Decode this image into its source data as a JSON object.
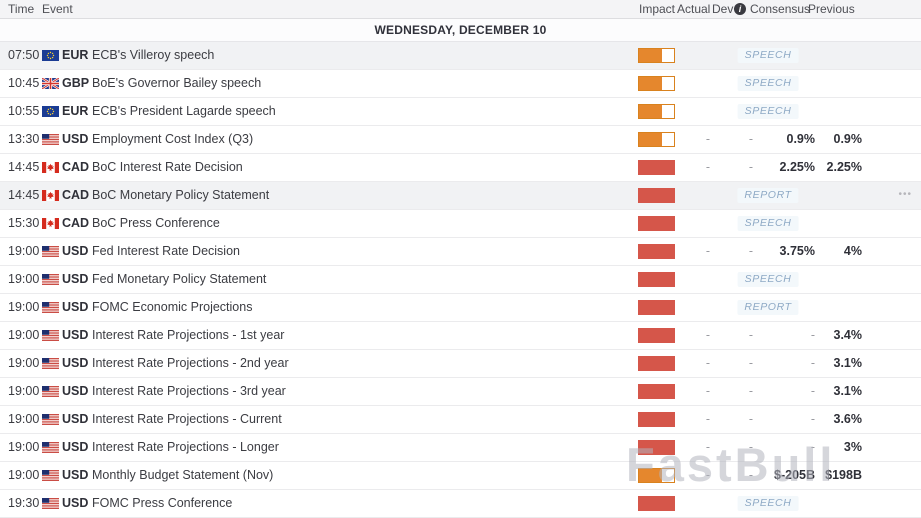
{
  "header": {
    "time": "Time",
    "event": "Event",
    "impact": "Impact",
    "actual": "Actual",
    "dev": "Dev",
    "consensus": "Consensus",
    "previous": "Previous"
  },
  "icons": {
    "info": "i",
    "more": "•••"
  },
  "date_header": "WEDNESDAY, DECEMBER 10",
  "watermark": "FastBull",
  "colors": {
    "impact_medium": "#E5872D",
    "impact_medium_border": "#D9821E",
    "impact_high": "#D5564A",
    "badge_text": "#8EA9C5",
    "highlight_row": "#F1F2F4"
  },
  "rows": [
    {
      "time": "07:50",
      "flag": "eu",
      "currency": "EUR",
      "event": "ECB's Villeroy speech",
      "impact": "medium",
      "badge": "SPEECH",
      "highlighted": true,
      "more": false
    },
    {
      "time": "10:45",
      "flag": "gb",
      "currency": "GBP",
      "event": "BoE's Governor Bailey speech",
      "impact": "medium",
      "badge": "SPEECH",
      "highlighted": false,
      "more": false
    },
    {
      "time": "10:55",
      "flag": "eu",
      "currency": "EUR",
      "event": "ECB's President Lagarde speech",
      "impact": "medium",
      "badge": "SPEECH",
      "highlighted": false,
      "more": false
    },
    {
      "time": "13:30",
      "flag": "us",
      "currency": "USD",
      "event": "Employment Cost Index (Q3)",
      "impact": "medium",
      "actual": "-",
      "dev": "-",
      "consensus": "0.9%",
      "previous": "0.9%",
      "highlighted": false,
      "more": false
    },
    {
      "time": "14:45",
      "flag": "ca",
      "currency": "CAD",
      "event": "BoC Interest Rate Decision",
      "impact": "high",
      "actual": "-",
      "dev": "-",
      "consensus": "2.25%",
      "previous": "2.25%",
      "highlighted": false,
      "more": false
    },
    {
      "time": "14:45",
      "flag": "ca",
      "currency": "CAD",
      "event": "BoC Monetary Policy Statement",
      "impact": "high",
      "badge": "REPORT",
      "highlighted": true,
      "more": true
    },
    {
      "time": "15:30",
      "flag": "ca",
      "currency": "CAD",
      "event": "BoC Press Conference",
      "impact": "high",
      "badge": "SPEECH",
      "highlighted": false,
      "more": false
    },
    {
      "time": "19:00",
      "flag": "us",
      "currency": "USD",
      "event": "Fed Interest Rate Decision",
      "impact": "high",
      "actual": "-",
      "dev": "-",
      "consensus": "3.75%",
      "previous": "4%",
      "highlighted": false,
      "more": false
    },
    {
      "time": "19:00",
      "flag": "us",
      "currency": "USD",
      "event": "Fed Monetary Policy Statement",
      "impact": "high",
      "badge": "SPEECH",
      "highlighted": false,
      "more": false
    },
    {
      "time": "19:00",
      "flag": "us",
      "currency": "USD",
      "event": "FOMC Economic Projections",
      "impact": "high",
      "badge": "REPORT",
      "highlighted": false,
      "more": false
    },
    {
      "time": "19:00",
      "flag": "us",
      "currency": "USD",
      "event": "Interest Rate Projections - 1st year",
      "impact": "high",
      "actual": "-",
      "dev": "-",
      "consensus": "-",
      "previous": "3.4%",
      "highlighted": false,
      "more": false
    },
    {
      "time": "19:00",
      "flag": "us",
      "currency": "USD",
      "event": "Interest Rate Projections - 2nd year",
      "impact": "high",
      "actual": "-",
      "dev": "-",
      "consensus": "-",
      "previous": "3.1%",
      "highlighted": false,
      "more": false
    },
    {
      "time": "19:00",
      "flag": "us",
      "currency": "USD",
      "event": "Interest Rate Projections - 3rd year",
      "impact": "high",
      "actual": "-",
      "dev": "-",
      "consensus": "-",
      "previous": "3.1%",
      "highlighted": false,
      "more": false
    },
    {
      "time": "19:00",
      "flag": "us",
      "currency": "USD",
      "event": "Interest Rate Projections - Current",
      "impact": "high",
      "actual": "-",
      "dev": "-",
      "consensus": "-",
      "previous": "3.6%",
      "highlighted": false,
      "more": false
    },
    {
      "time": "19:00",
      "flag": "us",
      "currency": "USD",
      "event": "Interest Rate Projections - Longer",
      "impact": "high",
      "actual": "-",
      "dev": "-",
      "consensus": "-",
      "previous": "3%",
      "highlighted": false,
      "more": false
    },
    {
      "time": "19:00",
      "flag": "us",
      "currency": "USD",
      "event": "Monthly Budget Statement (Nov)",
      "impact": "medium",
      "actual": "-",
      "dev": "-",
      "consensus": "$-205B",
      "previous": "$198B",
      "highlighted": false,
      "more": false
    },
    {
      "time": "19:30",
      "flag": "us",
      "currency": "USD",
      "event": "FOMC Press Conference",
      "impact": "high",
      "badge": "SPEECH",
      "highlighted": false,
      "more": false
    }
  ]
}
